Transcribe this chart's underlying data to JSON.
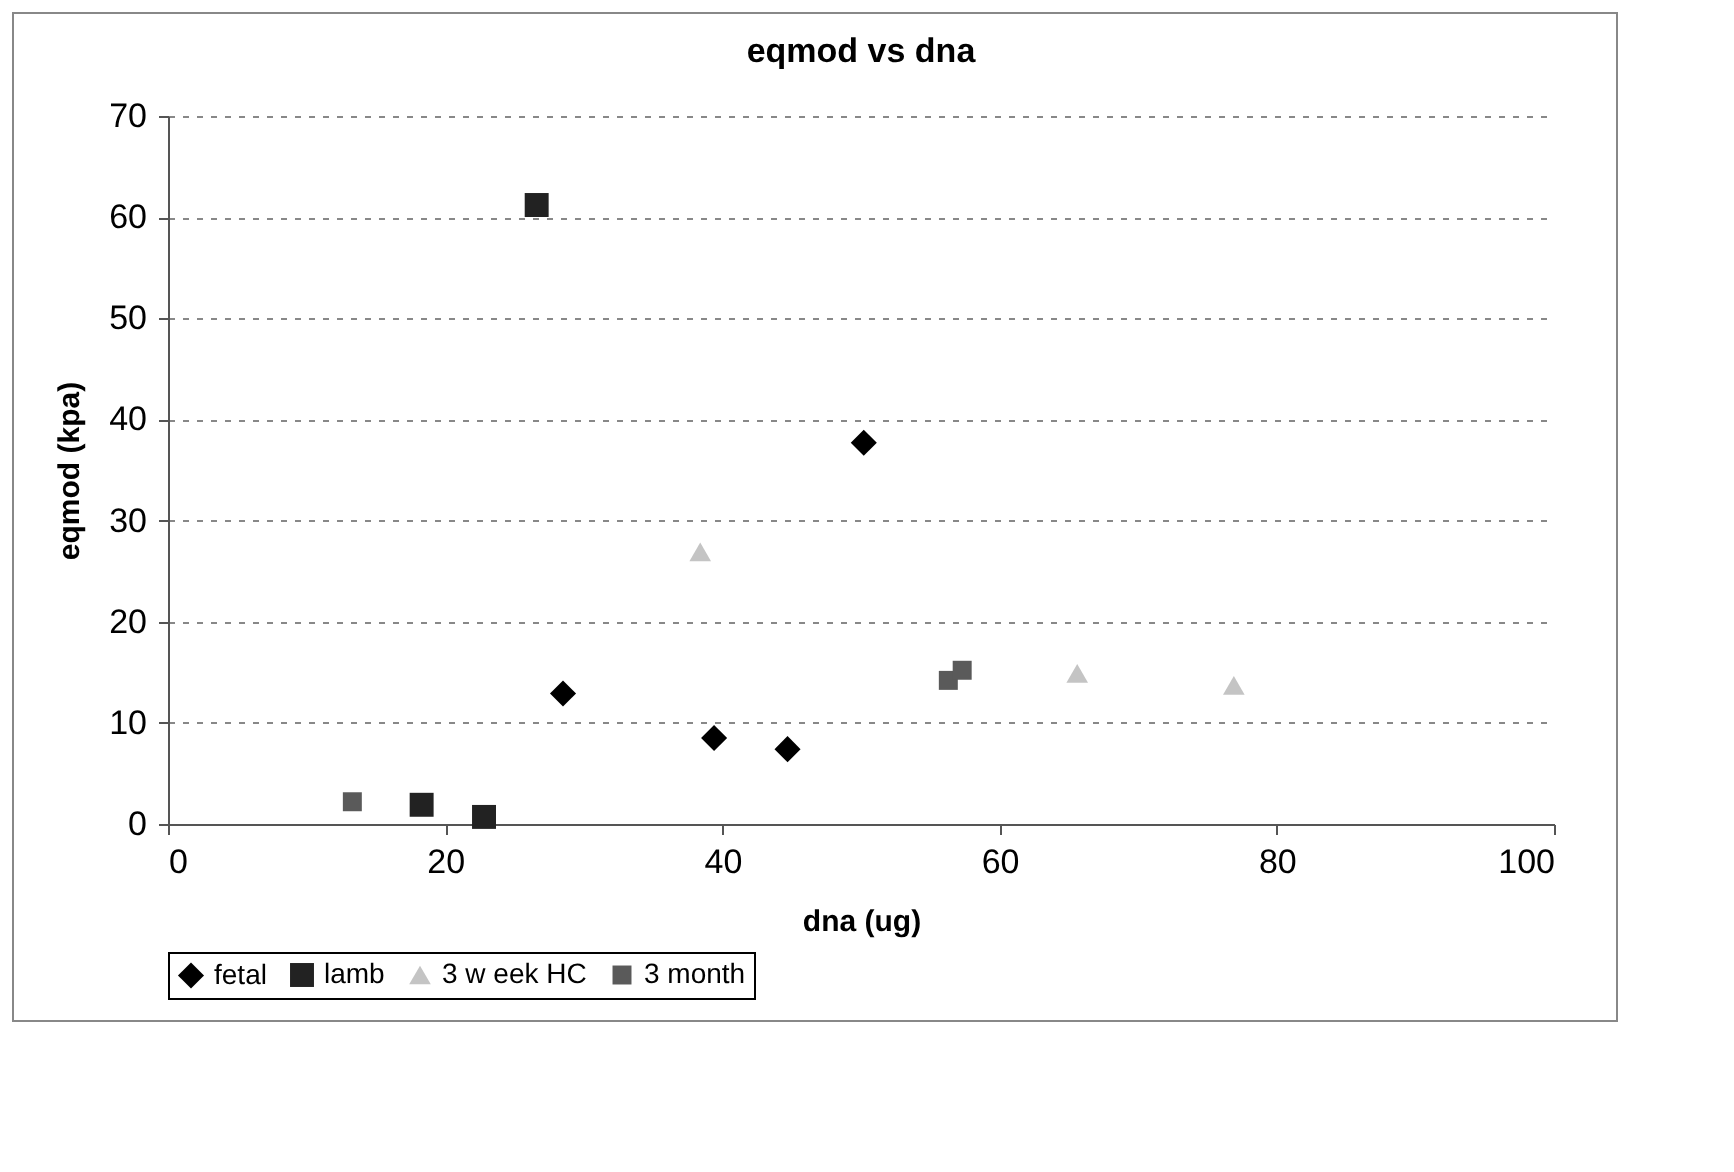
{
  "chart_data": {
    "type": "scatter",
    "title": "eqmod vs dna",
    "xlabel": "dna (ug)",
    "ylabel": "eqmod (kpa)",
    "xlim": [
      0,
      100
    ],
    "xticks": [
      0,
      20,
      40,
      60,
      80,
      100
    ],
    "ylim": [
      0,
      70
    ],
    "yticks": [
      0,
      10,
      20,
      30,
      40,
      50,
      60,
      70
    ],
    "grid": "y",
    "legend": "bottom",
    "series": [
      {
        "name": "fetal",
        "color": "#000000",
        "marker": "diamond",
        "x": [
          28.5,
          39.4,
          44.7,
          50.2
        ],
        "values": [
          12.9,
          8.5,
          7.4,
          37.7
        ]
      },
      {
        "name": "lamb",
        "color": "#222222",
        "marker": "square",
        "x": [
          26.6,
          18.3,
          22.8
        ],
        "values": [
          61.2,
          1.9,
          0.7
        ]
      },
      {
        "name": "3 w eek HC",
        "color": "#c4c4c4",
        "marker": "triangle",
        "x": [
          38.4,
          65.6,
          76.9
        ],
        "values": [
          26.9,
          14.9,
          13.7
        ]
      },
      {
        "name": "3 month",
        "color": "#5a5a5a",
        "marker": "square",
        "x": [
          13.3,
          56.3,
          57.3
        ],
        "values": [
          2.2,
          14.2,
          15.2
        ]
      }
    ]
  }
}
